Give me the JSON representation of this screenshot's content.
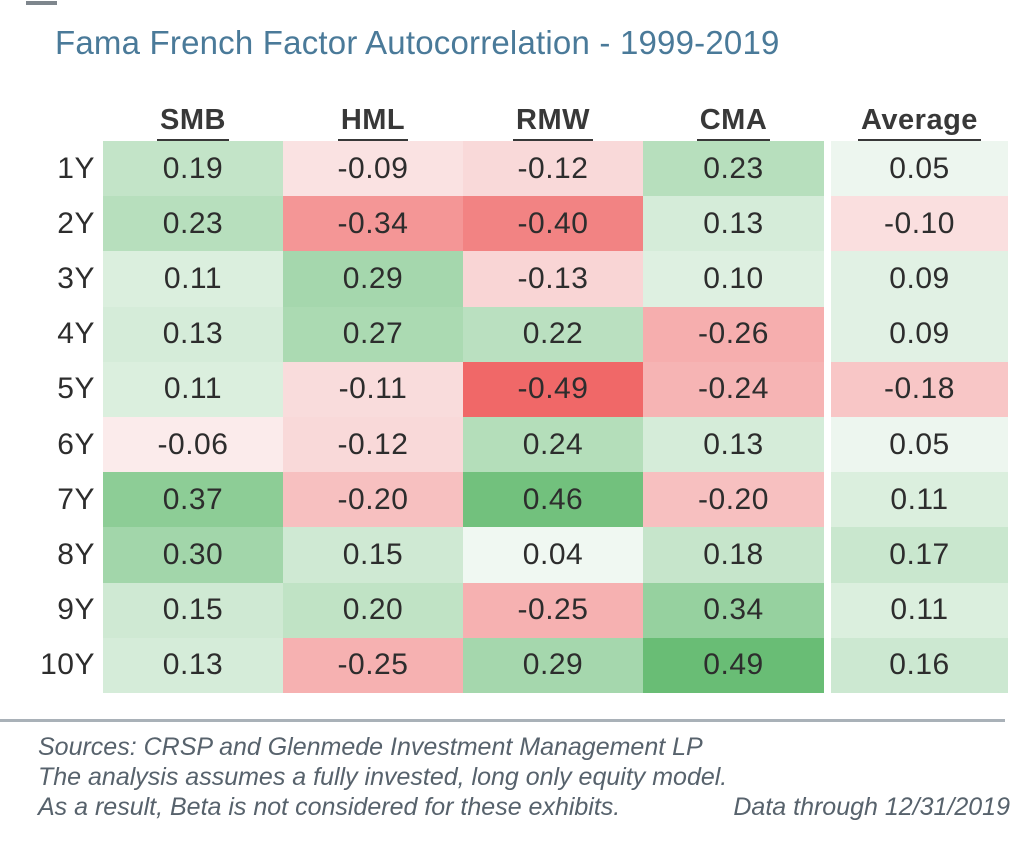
{
  "title": "Fama French Factor Autocorrelation - 1999-2019",
  "chart_data": {
    "type": "heatmap",
    "title": "Fama French Factor Autocorrelation - 1999-2019",
    "columns": [
      "SMB",
      "HML",
      "RMW",
      "CMA",
      "Average"
    ],
    "row_labels": [
      "1Y",
      "2Y",
      "3Y",
      "4Y",
      "5Y",
      "6Y",
      "7Y",
      "8Y",
      "9Y",
      "10Y"
    ],
    "rows": [
      {
        "label": "1Y",
        "values": [
          "0.19",
          "-0.09",
          "-0.12",
          "0.23",
          "0.05"
        ]
      },
      {
        "label": "2Y",
        "values": [
          "0.23",
          "-0.34",
          "-0.40",
          "0.13",
          "-0.10"
        ]
      },
      {
        "label": "3Y",
        "values": [
          "0.11",
          "0.29",
          "-0.13",
          "0.10",
          "0.09"
        ]
      },
      {
        "label": "4Y",
        "values": [
          "0.13",
          "0.27",
          "0.22",
          "-0.26",
          "0.09"
        ]
      },
      {
        "label": "5Y",
        "values": [
          "0.11",
          "-0.11",
          "-0.49",
          "-0.24",
          "-0.18"
        ]
      },
      {
        "label": "6Y",
        "values": [
          "-0.06",
          "-0.12",
          "0.24",
          "0.13",
          "0.05"
        ]
      },
      {
        "label": "7Y",
        "values": [
          "0.37",
          "-0.20",
          "0.46",
          "-0.20",
          "0.11"
        ]
      },
      {
        "label": "8Y",
        "values": [
          "0.30",
          "0.15",
          "0.04",
          "0.18",
          "0.17"
        ]
      },
      {
        "label": "9Y",
        "values": [
          "0.15",
          "0.20",
          "-0.25",
          "0.34",
          "0.11"
        ]
      },
      {
        "label": "10Y",
        "values": [
          "0.13",
          "-0.25",
          "0.29",
          "0.49",
          "0.16"
        ]
      }
    ],
    "color_scale": {
      "min": -0.49,
      "mid": 0,
      "max": 0.49,
      "min_color": "#f06868",
      "mid_color": "#fcfdfd",
      "max_color": "#69bd75"
    },
    "legend_position": "none",
    "grid": false
  },
  "footer": {
    "line1": "Sources: CRSP and Glenmede Investment Management LP",
    "line2": "The analysis assumes a fully invested, long only equity model.",
    "line3": "As a result, Beta is not considered for these exhibits.",
    "data_through": "Data through 12/31/2019"
  },
  "colors": {
    "title_text": "#4a7a99",
    "header_text": "#383838",
    "cell_text": "#2d2d2d",
    "footer_text": "#57626c",
    "divider": "#a9b1b8"
  }
}
